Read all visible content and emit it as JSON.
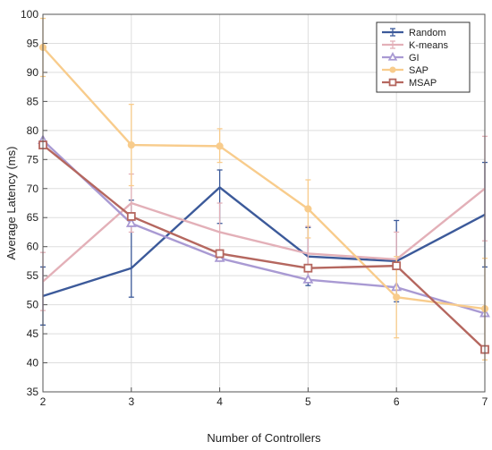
{
  "chart_data": {
    "type": "line",
    "xlabel": "Number of Controllers",
    "ylabel": "Average Latency (ms)",
    "xlim": [
      2,
      7
    ],
    "ylim": [
      35,
      100
    ],
    "x_ticks": [
      "2",
      "3",
      "4",
      "5",
      "6",
      "7"
    ],
    "y_ticks": [
      "35",
      "40",
      "45",
      "50",
      "55",
      "60",
      "65",
      "70",
      "75",
      "80",
      "85",
      "90",
      "95",
      "100"
    ],
    "grid": true,
    "legend_position": "top-right",
    "x": [
      2,
      3,
      4,
      5,
      6,
      7
    ],
    "series": [
      {
        "name": "Random",
        "color": "#3c5a9a",
        "marker": "errorbar",
        "values": [
          51.5,
          56.3,
          70.2,
          58.3,
          57.5,
          65.5
        ],
        "error_low": [
          46.5,
          51.3,
          64.0,
          53.3,
          50.5,
          56.5
        ],
        "error_high": [
          56.5,
          68.0,
          73.2,
          63.3,
          64.5,
          74.5
        ]
      },
      {
        "name": "K-means",
        "color": "#e3b0b8",
        "marker": "errorbar",
        "values": [
          54.0,
          67.5,
          62.5,
          58.8,
          57.8,
          70.0
        ],
        "error_low": [
          49.0,
          62.5,
          57.5,
          54.0,
          53.0,
          61.0
        ],
        "error_high": [
          59.0,
          72.5,
          67.5,
          63.5,
          62.5,
          79.0
        ]
      },
      {
        "name": "GI",
        "color": "#a99ad3",
        "marker": "triangle",
        "values": [
          78.3,
          64.0,
          58.0,
          54.3,
          53.0,
          48.5
        ]
      },
      {
        "name": "SAP",
        "color": "#f8cc8c",
        "marker": "circle",
        "values": [
          94.3,
          77.5,
          77.3,
          66.5,
          51.3,
          49.3
        ],
        "error_low": [
          89.3,
          70.5,
          74.5,
          61.5,
          44.3,
          40.5
        ],
        "error_high": [
          99.3,
          84.5,
          80.3,
          71.5,
          58.3,
          58.0
        ]
      },
      {
        "name": "MSAP",
        "color": "#b5675f",
        "marker": "square",
        "values": [
          77.5,
          65.2,
          58.8,
          56.3,
          56.7,
          42.3
        ]
      }
    ]
  }
}
